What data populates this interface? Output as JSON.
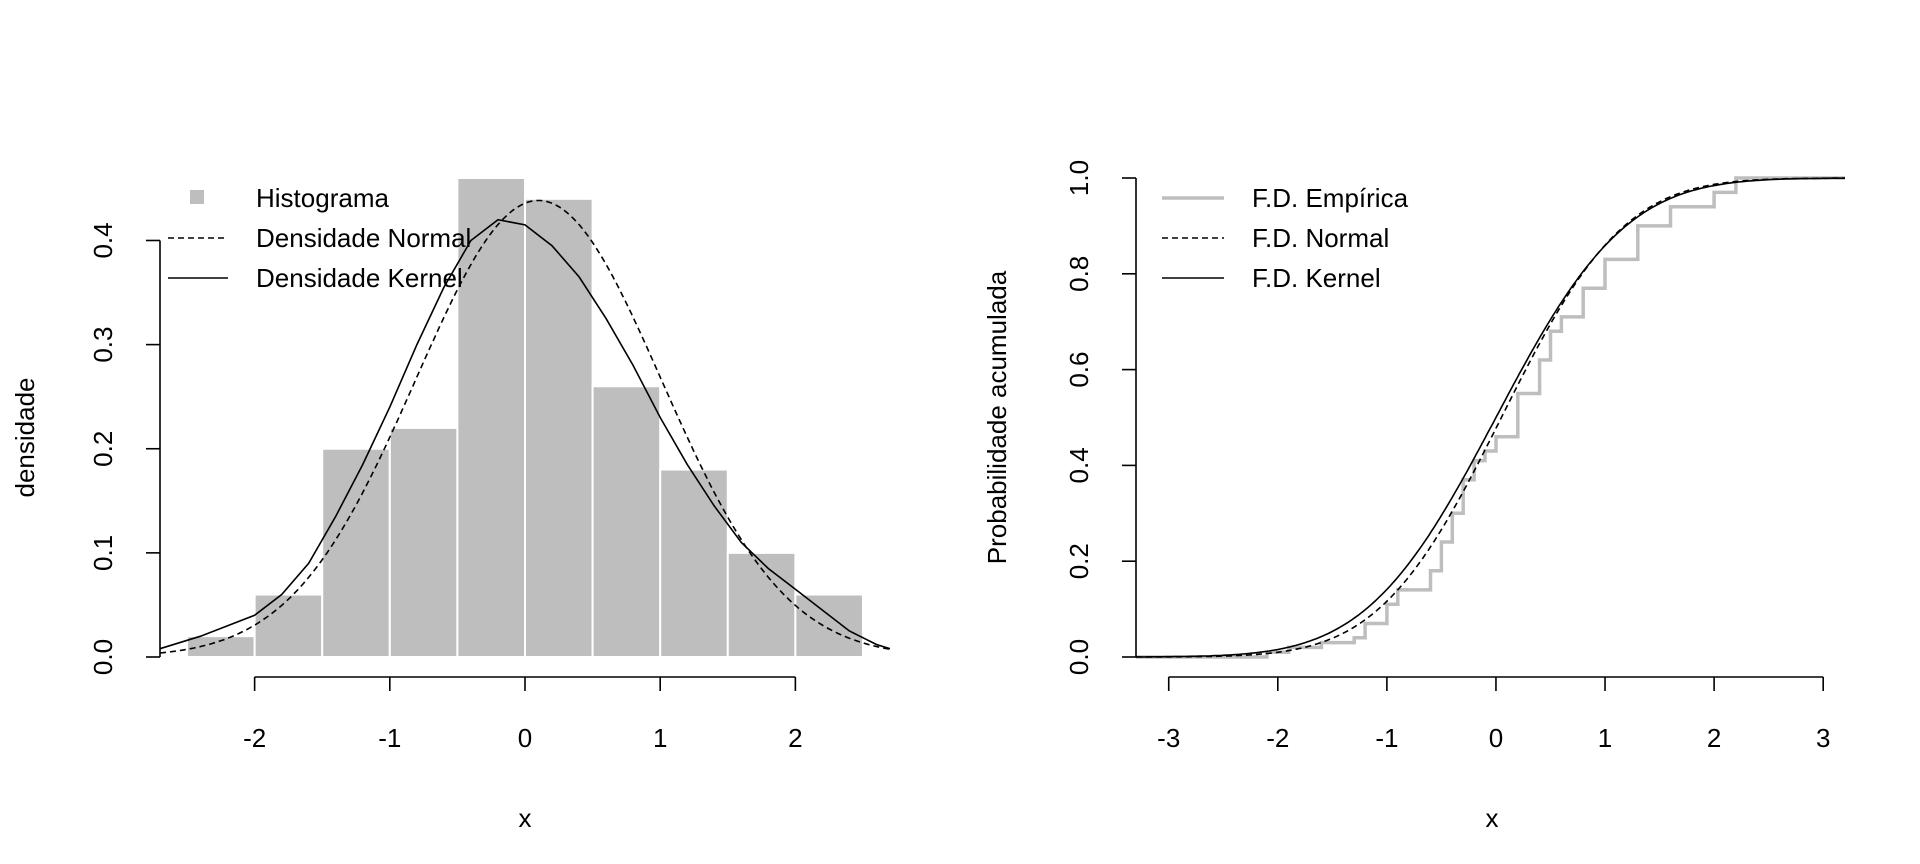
{
  "colors": {
    "histogram_fill": "#bebebe",
    "histogram_border": "#ffffff",
    "empirical_cdf": "#bebebe",
    "line": "#000000"
  },
  "chart_data": [
    {
      "type": "bar",
      "xlabel": "x",
      "ylabel": "densidade",
      "xlim": [
        -2.7,
        2.7
      ],
      "ylim": [
        0,
        0.46
      ],
      "x_ticks": [
        -2,
        -1,
        0,
        1,
        2
      ],
      "y_ticks": [
        0.0,
        0.1,
        0.2,
        0.3,
        0.4
      ],
      "x_tick_labels": [
        "-2",
        "-1",
        "0",
        "1",
        "2"
      ],
      "y_tick_labels": [
        "0.0",
        "0.1",
        "0.2",
        "0.3",
        "0.4"
      ],
      "legend_position": "top-left",
      "histogram": {
        "name": "Histograma",
        "bins": [
          {
            "x0": -2.5,
            "x1": -2.0,
            "density": 0.02
          },
          {
            "x0": -2.0,
            "x1": -1.5,
            "density": 0.06
          },
          {
            "x0": -1.5,
            "x1": -1.0,
            "density": 0.2
          },
          {
            "x0": -1.0,
            "x1": -0.5,
            "density": 0.22
          },
          {
            "x0": -0.5,
            "x1": 0.0,
            "density": 0.46
          },
          {
            "x0": 0.0,
            "x1": 0.5,
            "density": 0.44
          },
          {
            "x0": 0.5,
            "x1": 1.0,
            "density": 0.26
          },
          {
            "x0": 1.0,
            "x1": 1.5,
            "density": 0.18
          },
          {
            "x0": 1.5,
            "x1": 2.0,
            "density": 0.1
          },
          {
            "x0": 2.0,
            "x1": 2.5,
            "density": 0.06
          }
        ]
      },
      "series": [
        {
          "name": "Densidade Normal",
          "style": "dashed",
          "distribution": {
            "family": "normal",
            "mean": 0.1,
            "sd": 0.91
          },
          "x_range": [
            -2.7,
            2.7
          ]
        },
        {
          "name": "Densidade Kernel",
          "style": "solid",
          "x": [
            -2.7,
            -2.4,
            -2.2,
            -2.0,
            -1.8,
            -1.6,
            -1.4,
            -1.2,
            -1.0,
            -0.8,
            -0.6,
            -0.4,
            -0.2,
            0.0,
            0.2,
            0.4,
            0.6,
            0.8,
            1.0,
            1.2,
            1.4,
            1.6,
            1.8,
            2.0,
            2.2,
            2.4,
            2.6,
            2.7
          ],
          "y": [
            0.008,
            0.02,
            0.03,
            0.04,
            0.06,
            0.09,
            0.135,
            0.185,
            0.24,
            0.3,
            0.355,
            0.4,
            0.42,
            0.415,
            0.395,
            0.365,
            0.325,
            0.28,
            0.23,
            0.185,
            0.145,
            0.11,
            0.085,
            0.065,
            0.045,
            0.025,
            0.012,
            0.008
          ]
        }
      ],
      "legend": [
        {
          "label": "Histograma",
          "kind": "box"
        },
        {
          "label": "Densidade Normal",
          "kind": "dashed"
        },
        {
          "label": "Densidade Kernel",
          "kind": "solid"
        }
      ]
    },
    {
      "type": "line",
      "xlabel": "x",
      "ylabel": "Probabilidade acumulada",
      "xlim": [
        -3.3,
        3.2
      ],
      "ylim": [
        0,
        1
      ],
      "x_ticks": [
        -3,
        -2,
        -1,
        0,
        1,
        2,
        3
      ],
      "y_ticks": [
        0.0,
        0.2,
        0.4,
        0.6,
        0.8,
        1.0
      ],
      "x_tick_labels": [
        "-3",
        "-2",
        "-1",
        "0",
        "1",
        "2",
        "3"
      ],
      "y_tick_labels": [
        "0.0",
        "0.2",
        "0.4",
        "0.6",
        "0.8",
        "1.0"
      ],
      "legend_position": "top-left",
      "series": [
        {
          "name": "F.D. Empírica",
          "style": "solid-gray-step",
          "x": [
            -3.3,
            -2.4,
            -2.1,
            -1.9,
            -1.6,
            -1.3,
            -1.2,
            -1.0,
            -0.9,
            -0.7,
            -0.6,
            -0.5,
            -0.4,
            -0.3,
            -0.2,
            -0.1,
            0.0,
            0.2,
            0.4,
            0.5,
            0.6,
            0.8,
            1.0,
            1.3,
            1.6,
            2.0,
            2.2,
            3.2
          ],
          "y": [
            0.0,
            0.0,
            0.01,
            0.02,
            0.03,
            0.04,
            0.07,
            0.11,
            0.14,
            0.14,
            0.18,
            0.24,
            0.3,
            0.37,
            0.41,
            0.43,
            0.46,
            0.55,
            0.62,
            0.68,
            0.71,
            0.77,
            0.83,
            0.9,
            0.94,
            0.97,
            1.0,
            1.0
          ]
        },
        {
          "name": "F.D. Normal",
          "style": "dashed",
          "distribution": {
            "family": "normal-cdf",
            "mean": 0.05,
            "sd": 0.88
          },
          "x_range": [
            -3.3,
            3.2
          ]
        },
        {
          "name": "F.D. Kernel",
          "style": "solid",
          "distribution": {
            "family": "normal-cdf",
            "mean": 0.0,
            "sd": 0.93
          },
          "x_range": [
            -3.3,
            3.2
          ]
        }
      ],
      "legend": [
        {
          "label": "F.D. Empírica",
          "kind": "gray"
        },
        {
          "label": "F.D. Normal",
          "kind": "dashed"
        },
        {
          "label": "F.D. Kernel",
          "kind": "solid"
        }
      ]
    }
  ]
}
